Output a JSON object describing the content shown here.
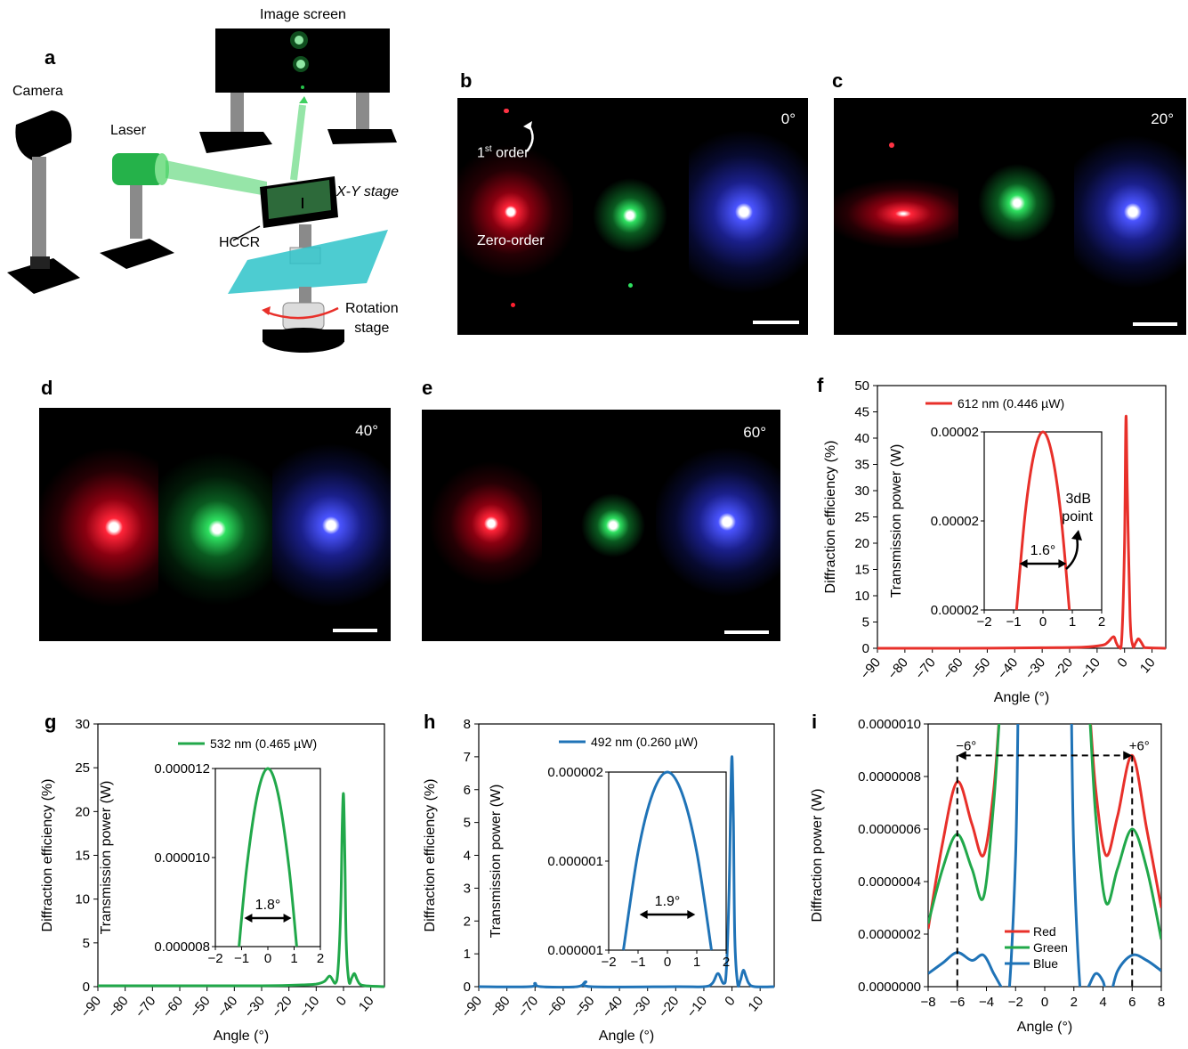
{
  "panel_labels": [
    "a",
    "b",
    "c",
    "d",
    "e",
    "f",
    "g",
    "h",
    "i"
  ],
  "setup": {
    "image_screen": "Image screen",
    "camera": "Camera",
    "laser": "Laser",
    "xy_stage": "X-Y stage",
    "hccr": "HCCR",
    "rotation_stage": "Rotation stage",
    "rotation_l1": "Rotation",
    "rotation_l2": "stage"
  },
  "photos": {
    "b": {
      "angle": "0°",
      "first_order": "1st order",
      "first_main": "1",
      "first_sup": "st",
      "first_rest": " order",
      "zero_order": "Zero-order"
    },
    "c": {
      "angle": "20°"
    },
    "d": {
      "angle": "40°"
    },
    "e": {
      "angle": "60°"
    }
  },
  "colors": {
    "red": "#e8302a",
    "green": "#21a84a",
    "blue": "#1f73b7"
  },
  "chart_data": [
    {
      "panel": "f",
      "type": "line",
      "xlabel": "Angle (°)",
      "ylabel": "Diffraction efficiency (%)",
      "xlim": [
        -90,
        15
      ],
      "ylim": [
        0,
        50
      ],
      "xticks": [
        -90,
        -80,
        -70,
        -60,
        -50,
        -40,
        -30,
        -20,
        -10,
        0,
        10
      ],
      "yticks": [
        0,
        5,
        10,
        15,
        20,
        25,
        30,
        35,
        40,
        45,
        50
      ],
      "legend": "612 nm (0.446 µW)",
      "series": [
        {
          "color": "#e8302a",
          "x": [
            -90,
            -60,
            -30,
            -15,
            -8,
            -6,
            -4,
            -3,
            -2,
            -1,
            0,
            0.5,
            1,
            2,
            3,
            4,
            5,
            6,
            7,
            8,
            15
          ],
          "y": [
            0,
            0,
            0.1,
            0.2,
            0.6,
            1.2,
            2.2,
            1.0,
            0.3,
            2.0,
            20,
            44,
            30,
            6,
            0.5,
            1.0,
            1.8,
            1.2,
            0.3,
            0.1,
            0
          ]
        }
      ],
      "inset": {
        "ylabel": "Transmission power (W)",
        "xlim": [
          -2,
          2
        ],
        "xticks": [
          -2,
          -1,
          0,
          1,
          2
        ],
        "yticks": [
          "0.00002",
          "0.00002",
          "0.00002"
        ],
        "annotation": "1.6°",
        "note_l1": "3dB",
        "note_l2": "point",
        "x": [
          -0.9,
          -0.6,
          -0.3,
          0,
          0.3,
          0.6,
          0.9
        ],
        "y": [
          0.0,
          0.55,
          0.88,
          1.0,
          0.88,
          0.55,
          0.0
        ]
      }
    },
    {
      "panel": "g",
      "type": "line",
      "xlabel": "Angle (°)",
      "ylabel": "Diffraction efficiency (%)",
      "xlim": [
        -90,
        15
      ],
      "ylim": [
        0,
        30
      ],
      "xticks": [
        -90,
        -80,
        -70,
        -60,
        -50,
        -40,
        -30,
        -20,
        -10,
        0,
        10
      ],
      "yticks": [
        0,
        5,
        10,
        15,
        20,
        25,
        30
      ],
      "legend": "532 nm (0.465 µW)",
      "series": [
        {
          "color": "#21a84a",
          "x": [
            -90,
            -60,
            -30,
            -15,
            -10,
            -7,
            -5,
            -3,
            -2,
            -1,
            -0.5,
            0,
            0.5,
            1,
            2,
            3,
            4,
            5,
            6,
            8,
            15
          ],
          "y": [
            0.1,
            0.1,
            0.1,
            0.2,
            0.3,
            0.6,
            1.2,
            0.4,
            2.0,
            9,
            18,
            22,
            15,
            5,
            0.6,
            1.0,
            1.5,
            0.8,
            0.3,
            0.1,
            0
          ]
        }
      ],
      "inset": {
        "ylabel": "Transmission power (W)",
        "xlim": [
          -2,
          2
        ],
        "xticks": [
          -2,
          -1,
          0,
          1,
          2
        ],
        "yticks": [
          "0.000008",
          "0.000010",
          "0.000012"
        ],
        "annotation": "1.8°",
        "x": [
          -1.1,
          -0.8,
          -0.4,
          0,
          0.4,
          0.8,
          1.1
        ],
        "y": [
          0.0,
          0.45,
          0.85,
          1.0,
          0.85,
          0.45,
          0.0
        ]
      }
    },
    {
      "panel": "h",
      "type": "line",
      "xlabel": "Angle (°)",
      "ylabel": "Diffraction efficiency (%)",
      "xlim": [
        -90,
        15
      ],
      "ylim": [
        0,
        8
      ],
      "xticks": [
        -90,
        -80,
        -70,
        -60,
        -50,
        -40,
        -30,
        -20,
        -10,
        0,
        10
      ],
      "yticks": [
        0,
        1,
        2,
        3,
        4,
        5,
        6,
        7,
        8
      ],
      "legend": "492 nm (0.260 µW)",
      "series": [
        {
          "color": "#1f73b7",
          "x": [
            -90,
            -72,
            -70,
            -68,
            -55,
            -52,
            -50,
            -20,
            -10,
            -7,
            -5,
            -3,
            -2,
            -1,
            -0.5,
            0,
            0.5,
            1,
            2,
            3,
            4,
            5,
            6,
            8,
            15
          ],
          "y": [
            0,
            0,
            0.1,
            0,
            0,
            0.15,
            0,
            0,
            0,
            0.1,
            0.4,
            0.1,
            0.5,
            3,
            5.5,
            7.0,
            5,
            1.5,
            0.1,
            0.2,
            0.5,
            0.3,
            0.1,
            0,
            0
          ]
        }
      ],
      "inset": {
        "ylabel": "Transmission power (W)",
        "xlim": [
          -2,
          2
        ],
        "xticks": [
          -2,
          -1,
          0,
          1,
          2
        ],
        "yticks": [
          "0.000001",
          "0.000001",
          "0.000002"
        ],
        "annotation": "1.9°",
        "x": [
          -1.5,
          -1.0,
          -0.5,
          0,
          0.5,
          1.0,
          1.5
        ],
        "y": [
          0.0,
          0.55,
          0.88,
          1.0,
          0.88,
          0.55,
          0.0
        ]
      }
    },
    {
      "panel": "i",
      "type": "line",
      "xlabel": "Angle (°)",
      "ylabel": "Diffraction power (W)",
      "xlim": [
        -8,
        8
      ],
      "ylim": [
        0,
        1e-06
      ],
      "xticks": [
        -8,
        -6,
        -4,
        -2,
        0,
        2,
        4,
        6,
        8
      ],
      "yticks": [
        "0.0000000",
        "0.0000002",
        "0.0000004",
        "0.0000006",
        "0.0000008",
        "0.0000010"
      ],
      "annotation_left": "−6°",
      "annotation_right": "+6°",
      "legend": "top-left inside",
      "series": [
        {
          "name": "Red",
          "color": "#e8302a",
          "x": [
            -8,
            -7,
            -6,
            -5,
            -4.2,
            -3.5,
            -3,
            -2.6,
            2.6,
            3,
            3.5,
            4.2,
            5,
            6,
            7,
            8
          ],
          "y": [
            0.22,
            0.55,
            0.78,
            0.62,
            0.5,
            0.75,
            1.1,
            1.2,
            1.2,
            1.1,
            0.75,
            0.5,
            0.65,
            0.88,
            0.6,
            0.3
          ]
        },
        {
          "name": "Green",
          "color": "#21a84a",
          "x": [
            -8,
            -7,
            -6,
            -5,
            -4.2,
            -3.5,
            -3,
            -2.6,
            2.6,
            3,
            3.5,
            4.2,
            5,
            6,
            7,
            8
          ],
          "y": [
            0.24,
            0.45,
            0.58,
            0.45,
            0.34,
            0.7,
            1.1,
            1.2,
            1.2,
            1.1,
            0.65,
            0.32,
            0.45,
            0.6,
            0.45,
            0.18
          ]
        },
        {
          "name": "Blue",
          "color": "#1f73b7",
          "x": [
            -8,
            -7,
            -6,
            -5,
            -4.2,
            -3.5,
            -3,
            -2.5,
            -2,
            -1.8,
            1.8,
            2,
            2.5,
            3,
            3.5,
            4,
            4.4,
            5,
            6,
            7,
            8
          ],
          "y": [
            0.05,
            0.09,
            0.13,
            0.1,
            0.12,
            0.05,
            0.0,
            -0.05,
            0.5,
            1.2,
            1.2,
            0.5,
            -0.05,
            0.0,
            0.05,
            0.02,
            -0.05,
            0.06,
            0.12,
            0.1,
            0.06
          ]
        }
      ]
    }
  ]
}
